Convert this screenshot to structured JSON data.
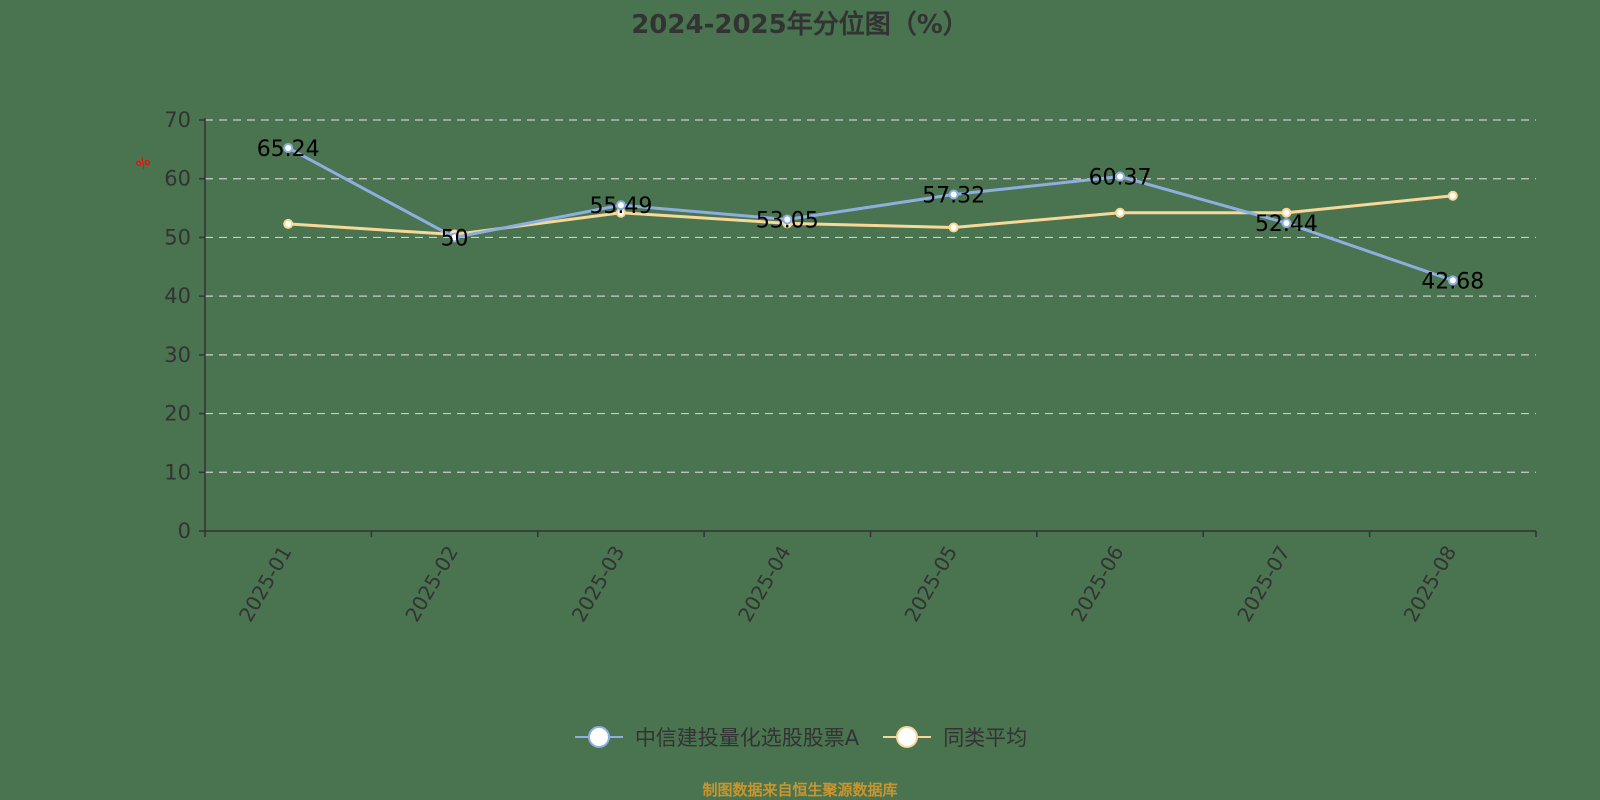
{
  "title": "2024-2025年分位图（%）",
  "y_unit_label": "%",
  "legend": [
    {
      "label": "中信建投量化选股股票A",
      "color": "#8eaee0"
    },
    {
      "label": "同类平均",
      "color": "#f8d898"
    }
  ],
  "source": "制图数据来自恒生聚源数据库",
  "colors": {
    "background": "#4a7350",
    "axis": "#333333",
    "grid": "#cccccc",
    "series1": "#8eaee0",
    "series2": "#f8d898",
    "unit_label": "#ff0000",
    "source": "#c8952e"
  },
  "chart_data": {
    "type": "line",
    "title": "2024-2025年分位图（%）",
    "xlabel": "",
    "ylabel": "%",
    "x": [
      "2025-01",
      "2025-02",
      "2025-03",
      "2025-04",
      "2025-05",
      "2025-06",
      "2025-07",
      "2025-08"
    ],
    "series": [
      {
        "name": "中信建投量化选股股票A",
        "values": [
          65.24,
          50,
          55.49,
          53.05,
          57.32,
          60.37,
          52.44,
          42.68
        ],
        "labels_shown": true
      },
      {
        "name": "同类平均",
        "values": [
          52.3,
          50.5,
          54.2,
          52.4,
          51.7,
          54.2,
          54.2,
          57.1
        ],
        "labels_shown": false
      }
    ],
    "yticks": [
      0,
      10,
      20,
      30,
      40,
      50,
      60,
      70
    ],
    "ylim": [
      0,
      70
    ],
    "grid": true,
    "legend_position": "bottom"
  }
}
